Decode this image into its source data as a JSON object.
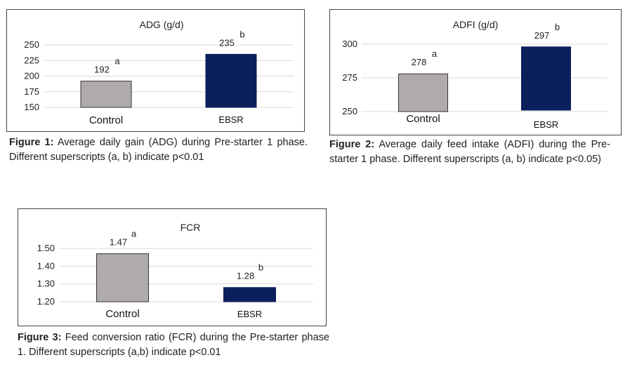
{
  "figures": [
    {
      "id": "fig1",
      "caption_label": "Figure 1:",
      "caption_text": "Average daily gain (ADG) during Pre-starter 1 phase. Different superscripts (a, b) indicate p<0.01"
    },
    {
      "id": "fig2",
      "caption_label": "Figure 2:",
      "caption_text": "Average daily feed intake (ADFI) during the Pre-starter 1 phase. Different superscripts (a, b) indicate p<0.05)"
    },
    {
      "id": "fig3",
      "caption_label": "Figure 3:",
      "caption_text": "Feed conversion ratio (FCR) during the Pre-starter phase 1. Different superscripts (a,b) indicate p<0.01"
    }
  ],
  "colors": {
    "control": "#b0abab",
    "ebsr": "#0b1f5c",
    "grid": "#d9d9d9"
  },
  "chart_data": [
    {
      "type": "bar",
      "title": "ADG (g/d)",
      "categories": [
        "Control",
        "EBSR"
      ],
      "values": [
        192,
        235
      ],
      "value_labels": [
        "192",
        "235"
      ],
      "superscripts": [
        "a",
        "b"
      ],
      "yticks": [
        "150",
        "175",
        "200",
        "225",
        "250"
      ],
      "ytick_values": [
        150,
        175,
        200,
        225,
        250
      ],
      "ylim": [
        150,
        250
      ],
      "grid": true
    },
    {
      "type": "bar",
      "title": "ADFI (g/d)",
      "categories": [
        "Control",
        "EBSR"
      ],
      "values": [
        278,
        297
      ],
      "value_labels": [
        "278",
        "297"
      ],
      "superscripts": [
        "a",
        "b"
      ],
      "yticks": [
        "250",
        "275",
        "300"
      ],
      "ytick_values": [
        250,
        275,
        300
      ],
      "ylim": [
        250,
        300
      ],
      "grid": true
    },
    {
      "type": "bar",
      "title": "FCR",
      "categories": [
        "Control",
        "EBSR"
      ],
      "values": [
        1.47,
        1.28
      ],
      "value_labels": [
        "1.47",
        "1.28"
      ],
      "superscripts": [
        "a",
        "b"
      ],
      "yticks": [
        "1.20",
        "1.30",
        "1.40",
        "1.50"
      ],
      "ytick_values": [
        1.2,
        1.3,
        1.4,
        1.5
      ],
      "ylim": [
        1.2,
        1.5
      ],
      "grid": true
    }
  ]
}
